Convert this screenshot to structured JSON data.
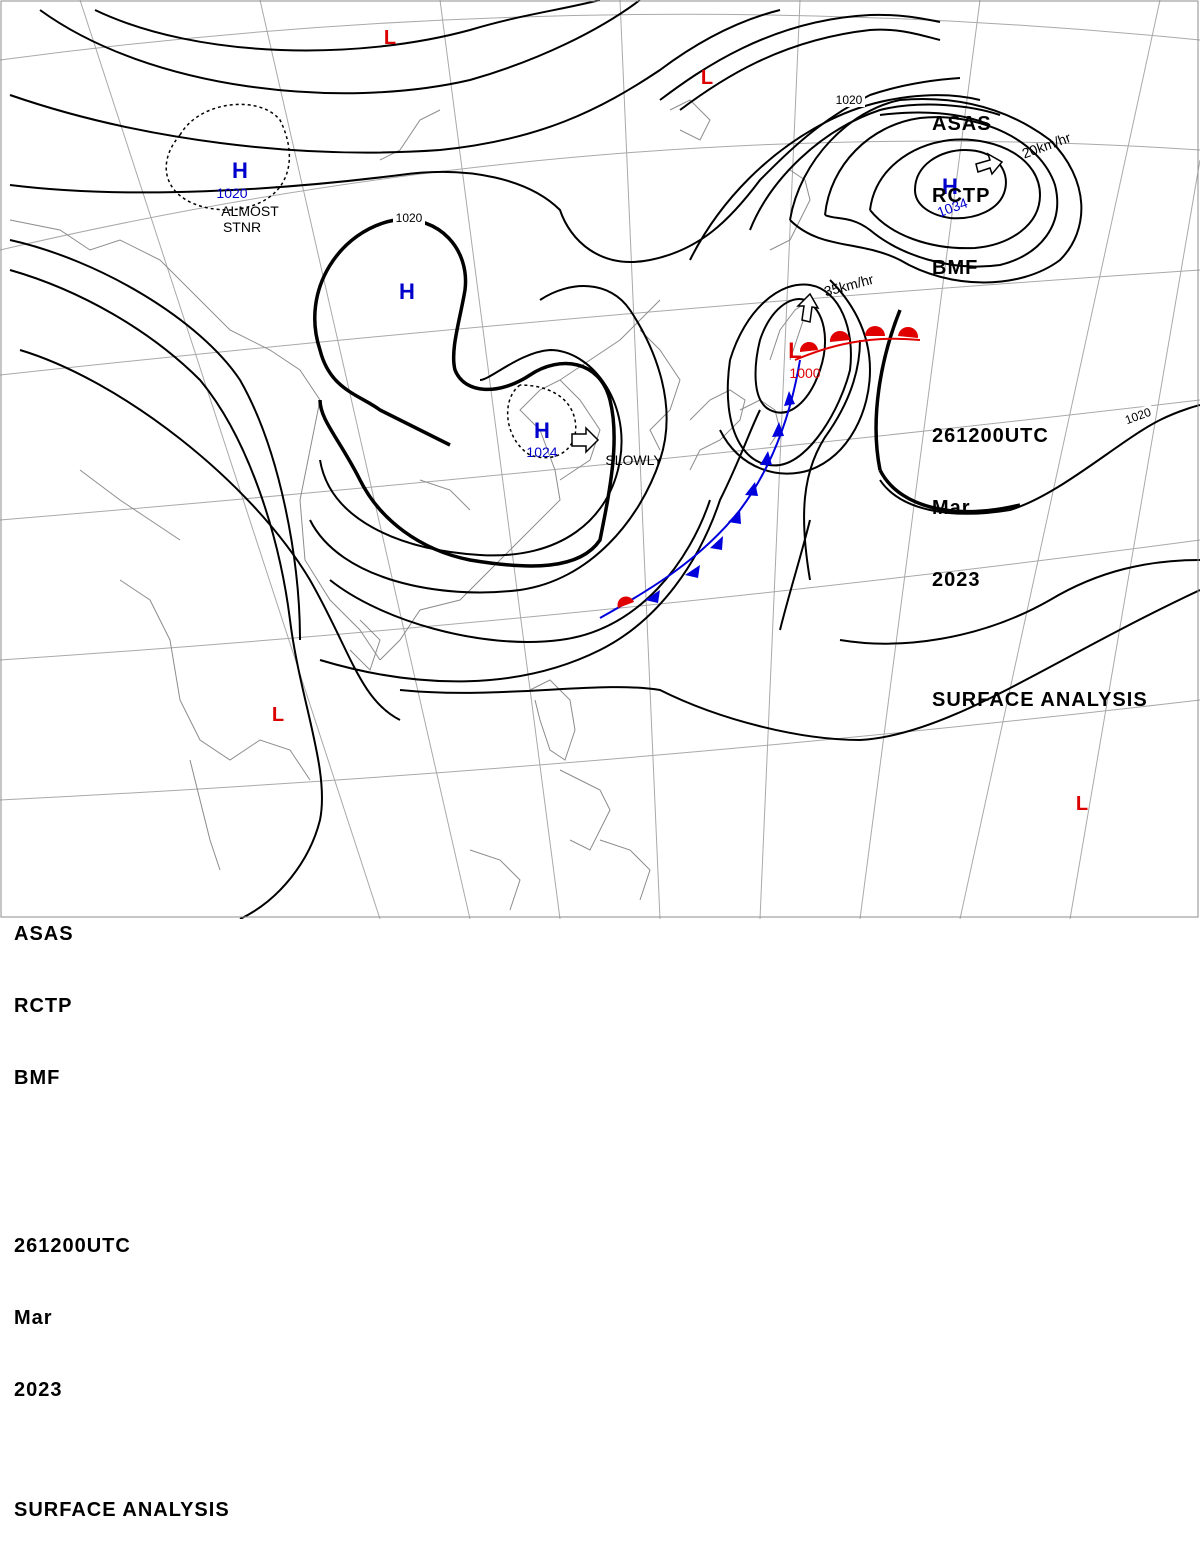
{
  "header": {
    "line1": [
      "ASAS",
      "RCTP",
      "BMF"
    ],
    "line2": [
      "261200UTC",
      "Mar",
      "2023"
    ],
    "line3": "SURFACE ANALYSIS"
  },
  "colors": {
    "high": "#0000cc",
    "low": "#dd0000",
    "isobar": "#000000",
    "coast": "#8c8c8c",
    "grid": "#a0a0a0",
    "warm_front": "#e00000",
    "cold_front": "#0000dd"
  },
  "pressure_systems": [
    {
      "id": "H1",
      "type": "H",
      "pressure": "1020",
      "note": "ALMOST STNR"
    },
    {
      "id": "H2",
      "type": "H",
      "pressure": "",
      "note": ""
    },
    {
      "id": "H3",
      "type": "H",
      "pressure": "1024",
      "note": "SLOWLY"
    },
    {
      "id": "H4",
      "type": "H",
      "pressure": "1034",
      "note": "20km/hr"
    },
    {
      "id": "L1",
      "type": "L",
      "pressure": "1000",
      "note": "35km/hr"
    },
    {
      "id": "L2",
      "type": "L",
      "pressure": "",
      "note": ""
    },
    {
      "id": "L3",
      "type": "L",
      "pressure": "",
      "note": ""
    },
    {
      "id": "L4",
      "type": "L",
      "pressure": "",
      "note": ""
    },
    {
      "id": "L5",
      "type": "L",
      "pressure": "",
      "note": ""
    }
  ],
  "isobar_labels": [
    "1020",
    "1020",
    "1020"
  ],
  "fronts": [
    {
      "type": "warm"
    },
    {
      "type": "cold"
    }
  ]
}
